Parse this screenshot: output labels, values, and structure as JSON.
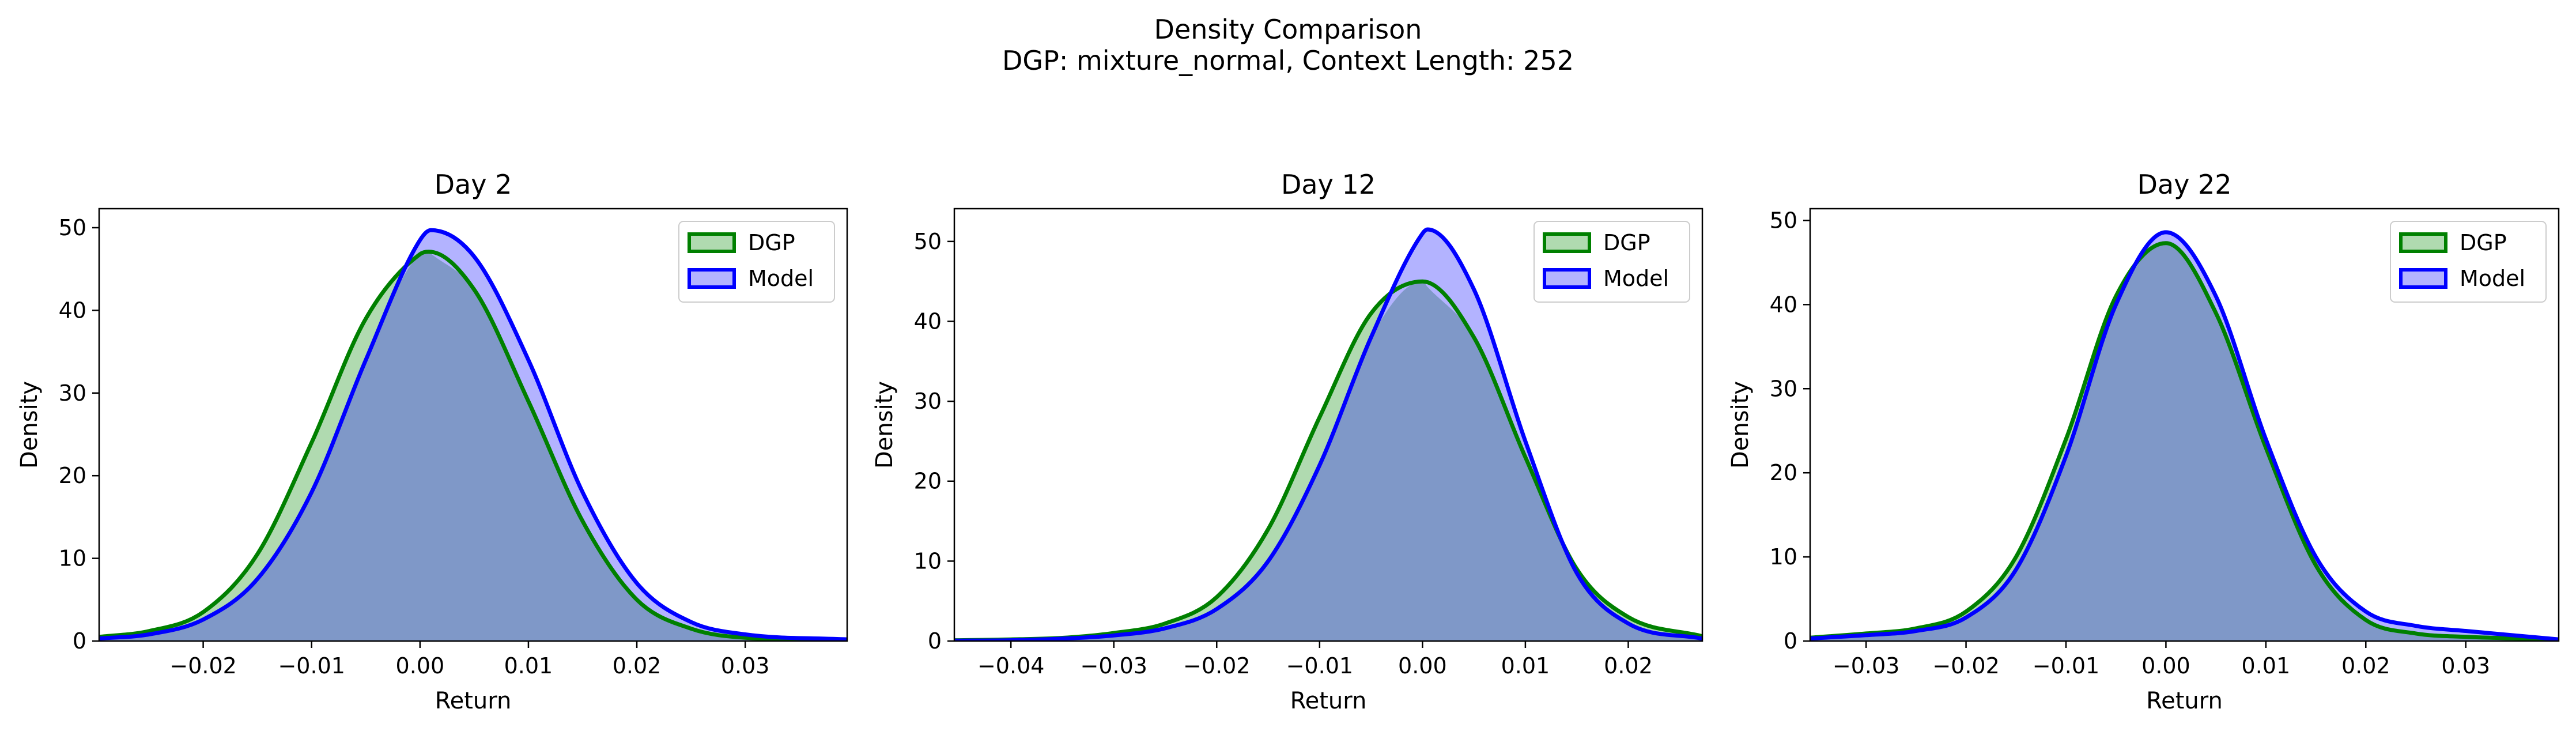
{
  "figure": {
    "title_line1": "Density Comparison",
    "title_line2": "DGP: mixture_normal, Context Length: 252"
  },
  "colors": {
    "dgp_line": "#008000",
    "dgp_fill": "#b0dab0",
    "model_line": "#0000ff",
    "model_fill": "#b3b3ff",
    "overlap_fill": "#7f98c8",
    "overlap_line": "#005050"
  },
  "chart_data": [
    {
      "type": "area",
      "title": "Day 2",
      "xlabel": "Return",
      "ylabel": "Density",
      "xlim": [
        -0.0296,
        0.0394
      ],
      "ylim": [
        0,
        52.3
      ],
      "xticks": [
        -0.02,
        -0.01,
        0.0,
        0.01,
        0.02,
        0.03
      ],
      "xtick_labels": [
        "−0.02",
        "−0.01",
        "0.00",
        "0.01",
        "0.02",
        "0.03"
      ],
      "yticks": [
        0,
        10,
        20,
        30,
        40,
        50
      ],
      "ytick_labels": [
        "0",
        "10",
        "20",
        "30",
        "40",
        "50"
      ],
      "legend": {
        "position": "top-right",
        "entries": [
          "DGP",
          "Model"
        ]
      },
      "grid": false,
      "series": [
        {
          "name": "DGP",
          "x": [
            -0.0296,
            -0.025,
            -0.02,
            -0.015,
            -0.01,
            -0.005,
            0.0,
            0.0008,
            0.005,
            0.01,
            0.015,
            0.02,
            0.025,
            0.03,
            0.0394
          ],
          "y": [
            0.5,
            1.2,
            3.5,
            10.5,
            24,
            39,
            46.8,
            47.1,
            42.5,
            29,
            14.5,
            5,
            1.5,
            0.4,
            0.1
          ]
        },
        {
          "name": "Model",
          "x": [
            -0.0296,
            -0.025,
            -0.02,
            -0.015,
            -0.01,
            -0.005,
            0.0,
            0.001,
            0.005,
            0.01,
            0.015,
            0.02,
            0.025,
            0.03,
            0.0394
          ],
          "y": [
            0.3,
            0.8,
            2.6,
            7.5,
            18,
            34,
            48.5,
            49.7,
            46.5,
            34,
            18,
            7,
            2.3,
            0.8,
            0.2
          ]
        }
      ]
    },
    {
      "type": "area",
      "title": "Day 12",
      "xlabel": "Return",
      "ylabel": "Density",
      "xlim": [
        -0.0455,
        0.0272
      ],
      "ylim": [
        0,
        54.1
      ],
      "xticks": [
        -0.04,
        -0.03,
        -0.02,
        -0.01,
        0.0,
        0.01,
        0.02
      ],
      "xtick_labels": [
        "−0.04",
        "−0.03",
        "−0.02",
        "−0.01",
        "0.00",
        "0.01",
        "0.02"
      ],
      "yticks": [
        0,
        10,
        20,
        30,
        40,
        50
      ],
      "ytick_labels": [
        "0",
        "10",
        "20",
        "30",
        "40",
        "50"
      ],
      "legend": {
        "position": "top-right",
        "entries": [
          "DGP",
          "Model"
        ]
      },
      "grid": false,
      "series": [
        {
          "name": "DGP",
          "x": [
            -0.0455,
            -0.04,
            -0.035,
            -0.03,
            -0.025,
            -0.02,
            -0.015,
            -0.01,
            -0.005,
            0.0,
            0.005,
            0.01,
            0.015,
            0.02,
            0.0272
          ],
          "y": [
            0.1,
            0.2,
            0.4,
            1.0,
            2.2,
            5.5,
            14,
            28,
            41,
            45,
            38,
            23,
            9,
            3,
            0.6
          ]
        },
        {
          "name": "Model",
          "x": [
            -0.0455,
            -0.04,
            -0.035,
            -0.03,
            -0.025,
            -0.02,
            -0.015,
            -0.01,
            -0.005,
            0.0,
            0.0005,
            0.005,
            0.01,
            0.015,
            0.02,
            0.0272
          ],
          "y": [
            0.05,
            0.1,
            0.3,
            0.7,
            1.6,
            4,
            10,
            22,
            38,
            51,
            51.5,
            44,
            25,
            8.5,
            2.2,
            0.3
          ]
        }
      ]
    },
    {
      "type": "area",
      "title": "Day 22",
      "xlabel": "Return",
      "ylabel": "Density",
      "xlim": [
        -0.0356,
        0.0393
      ],
      "ylim": [
        0,
        51.4
      ],
      "xticks": [
        -0.03,
        -0.02,
        -0.01,
        0.0,
        0.01,
        0.02,
        0.03
      ],
      "xtick_labels": [
        "−0.03",
        "−0.02",
        "−0.01",
        "0.00",
        "0.01",
        "0.02",
        "0.03"
      ],
      "yticks": [
        0,
        10,
        20,
        30,
        40,
        50
      ],
      "ytick_labels": [
        "0",
        "10",
        "20",
        "30",
        "40",
        "50"
      ],
      "legend": {
        "position": "top-right",
        "entries": [
          "DGP",
          "Model"
        ]
      },
      "grid": false,
      "series": [
        {
          "name": "DGP",
          "x": [
            -0.0356,
            -0.03,
            -0.025,
            -0.02,
            -0.015,
            -0.01,
            -0.005,
            0.0,
            0.005,
            0.01,
            0.015,
            0.02,
            0.025,
            0.03,
            0.0393
          ],
          "y": [
            0.4,
            0.9,
            1.5,
            3.5,
            10,
            24,
            41,
            47.3,
            39,
            23,
            9,
            2.5,
            0.9,
            0.5,
            0.2
          ]
        },
        {
          "name": "Model",
          "x": [
            -0.0356,
            -0.03,
            -0.025,
            -0.02,
            -0.015,
            -0.01,
            -0.005,
            0.0,
            0.005,
            0.01,
            0.015,
            0.02,
            0.025,
            0.03,
            0.0393
          ],
          "y": [
            0.3,
            0.7,
            1.2,
            2.8,
            8.5,
            22,
            40,
            48.6,
            41,
            24,
            10,
            3.5,
            1.8,
            1.2,
            0.2
          ]
        }
      ]
    }
  ]
}
